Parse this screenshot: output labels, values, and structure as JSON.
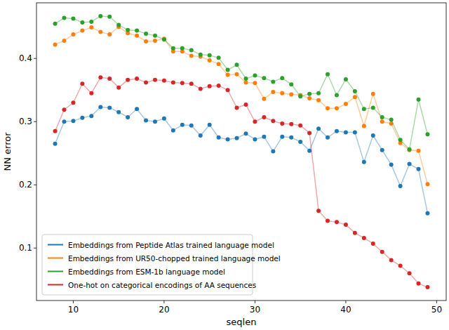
{
  "chart_data": {
    "type": "line",
    "x_label": "seqlen",
    "y_label": "NN error",
    "x": [
      8,
      9,
      10,
      11,
      12,
      13,
      14,
      15,
      16,
      17,
      18,
      19,
      20,
      21,
      22,
      23,
      24,
      25,
      26,
      27,
      28,
      29,
      30,
      31,
      32,
      33,
      34,
      35,
      36,
      37,
      38,
      39,
      40,
      41,
      42,
      43,
      44,
      45,
      46,
      47,
      48,
      49
    ],
    "xlim": [
      5.95,
      51.05
    ],
    "xticks": [
      10,
      20,
      30,
      40,
      50
    ],
    "ylim": [
      0.017,
      0.488
    ],
    "yticks": [
      0.1,
      0.2,
      0.3,
      0.4
    ],
    "grid": false,
    "legend": "lower left",
    "marker": "circle",
    "series": [
      {
        "name": "Embeddings from Peptide Atlas trained language model",
        "color": "#1f77b4",
        "values": [
          0.265,
          0.3,
          0.301,
          0.306,
          0.309,
          0.323,
          0.322,
          0.315,
          0.307,
          0.32,
          0.302,
          0.3,
          0.305,
          0.286,
          0.295,
          0.294,
          0.278,
          0.295,
          0.275,
          0.272,
          0.274,
          0.281,
          0.272,
          0.276,
          0.253,
          0.276,
          0.275,
          0.268,
          0.254,
          0.289,
          0.275,
          0.285,
          0.283,
          0.283,
          0.236,
          0.278,
          0.255,
          0.232,
          0.198,
          0.233,
          0.225,
          0.155
        ]
      },
      {
        "name": "Embeddings from UR50-chopped trained language model",
        "color": "#ff7f0e",
        "values": [
          0.422,
          0.428,
          0.438,
          0.444,
          0.449,
          0.442,
          0.438,
          0.45,
          0.44,
          0.436,
          0.427,
          0.428,
          0.431,
          0.411,
          0.411,
          0.404,
          0.403,
          0.397,
          0.391,
          0.374,
          0.375,
          0.362,
          0.361,
          0.336,
          0.347,
          0.345,
          0.343,
          0.342,
          0.337,
          0.334,
          0.321,
          0.321,
          0.328,
          0.339,
          0.293,
          0.344,
          0.3,
          0.297,
          0.266,
          0.255,
          0.254,
          0.201
        ]
      },
      {
        "name": "Embeddings from ESM-1b language model",
        "color": "#2ca02c",
        "values": [
          0.455,
          0.464,
          0.463,
          0.457,
          0.458,
          0.467,
          0.466,
          0.453,
          0.445,
          0.444,
          0.439,
          0.436,
          0.43,
          0.416,
          0.416,
          0.413,
          0.406,
          0.405,
          0.401,
          0.382,
          0.39,
          0.368,
          0.373,
          0.369,
          0.363,
          0.369,
          0.359,
          0.34,
          0.344,
          0.345,
          0.375,
          0.342,
          0.367,
          0.348,
          0.32,
          0.322,
          0.307,
          0.303,
          0.271,
          0.256,
          0.335,
          0.28
        ]
      },
      {
        "name": "One-hot on categorical encodings of AA sequences",
        "color": "#d62728",
        "values": [
          0.285,
          0.319,
          0.33,
          0.36,
          0.345,
          0.37,
          0.368,
          0.354,
          0.366,
          0.368,
          0.362,
          0.366,
          0.365,
          0.362,
          0.361,
          0.36,
          0.352,
          0.356,
          0.357,
          0.35,
          0.322,
          0.327,
          0.3,
          0.307,
          0.301,
          0.297,
          0.296,
          0.294,
          0.282,
          0.159,
          0.143,
          0.141,
          0.137,
          0.124,
          0.116,
          0.107,
          0.094,
          0.081,
          0.072,
          0.06,
          0.044,
          0.038
        ]
      }
    ]
  }
}
